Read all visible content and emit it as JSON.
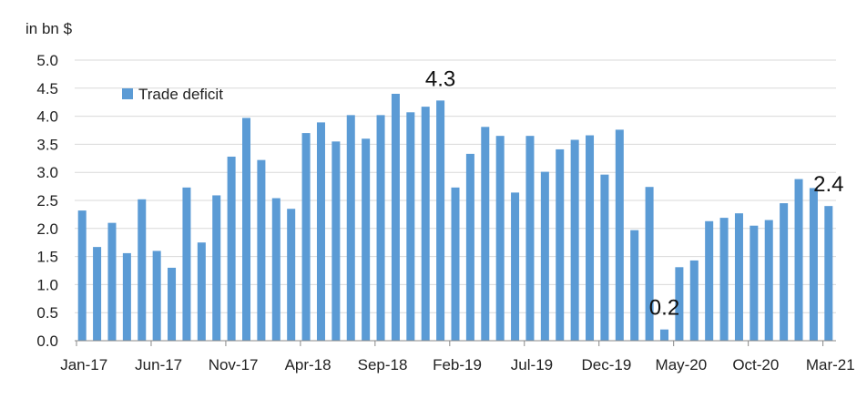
{
  "chart_data": {
    "type": "bar",
    "unit_label": "in bn $",
    "legend": {
      "label": "Trade deficit",
      "placement": "top-left"
    },
    "colors": {
      "bar": "#5b9bd5",
      "grid": "#d9d9d9",
      "axis": "#888888",
      "text": "#222222"
    },
    "ylim": [
      0,
      5
    ],
    "yticks": [
      "0.0",
      "0.5",
      "1.0",
      "1.5",
      "2.0",
      "2.5",
      "3.0",
      "3.5",
      "4.0",
      "4.5",
      "5.0"
    ],
    "grid": true,
    "x_tick_labels": [
      "Jan-17",
      "Jun-17",
      "Nov-17",
      "Apr-18",
      "Sep-18",
      "Feb-19",
      "Jul-19",
      "Dec-19",
      "May-20",
      "Oct-20",
      "Mar-21"
    ],
    "categories": [
      "Jan-17",
      "Feb-17",
      "Mar-17",
      "Apr-17",
      "May-17",
      "Jun-17",
      "Jul-17",
      "Aug-17",
      "Sep-17",
      "Oct-17",
      "Nov-17",
      "Dec-17",
      "Jan-18",
      "Feb-18",
      "Mar-18",
      "Apr-18",
      "May-18",
      "Jun-18",
      "Jul-18",
      "Aug-18",
      "Sep-18",
      "Oct-18",
      "Nov-18",
      "Dec-18",
      "Jan-19",
      "Feb-19",
      "Mar-19",
      "Apr-19",
      "May-19",
      "Jun-19",
      "Jul-19",
      "Aug-19",
      "Sep-19",
      "Oct-19",
      "Nov-19",
      "Dec-19",
      "Jan-20",
      "Feb-20",
      "Mar-20",
      "Apr-20",
      "May-20",
      "Jun-20",
      "Jul-20",
      "Aug-20",
      "Sep-20",
      "Oct-20",
      "Nov-20",
      "Dec-20",
      "Jan-21",
      "Feb-21",
      "Mar-21"
    ],
    "series": [
      {
        "name": "Trade deficit",
        "values": [
          2.32,
          1.67,
          2.1,
          1.56,
          2.52,
          1.6,
          1.3,
          2.73,
          1.75,
          2.59,
          3.28,
          3.97,
          3.22,
          2.54,
          2.35,
          3.7,
          3.89,
          3.55,
          4.02,
          3.6,
          4.02,
          4.4,
          4.07,
          4.17,
          4.28,
          2.73,
          3.33,
          3.81,
          3.65,
          2.64,
          3.65,
          3.01,
          3.41,
          3.58,
          3.66,
          2.96,
          3.76,
          1.97,
          2.74,
          0.2,
          1.31,
          1.43,
          2.13,
          2.19,
          2.27,
          2.05,
          2.15,
          2.45,
          2.88,
          2.72,
          2.4
        ]
      }
    ],
    "annotations": [
      {
        "category": "Jan-19",
        "text": "4.3"
      },
      {
        "category": "Apr-20",
        "text": "0.2"
      },
      {
        "category": "Mar-21",
        "text": "2.4"
      }
    ]
  }
}
